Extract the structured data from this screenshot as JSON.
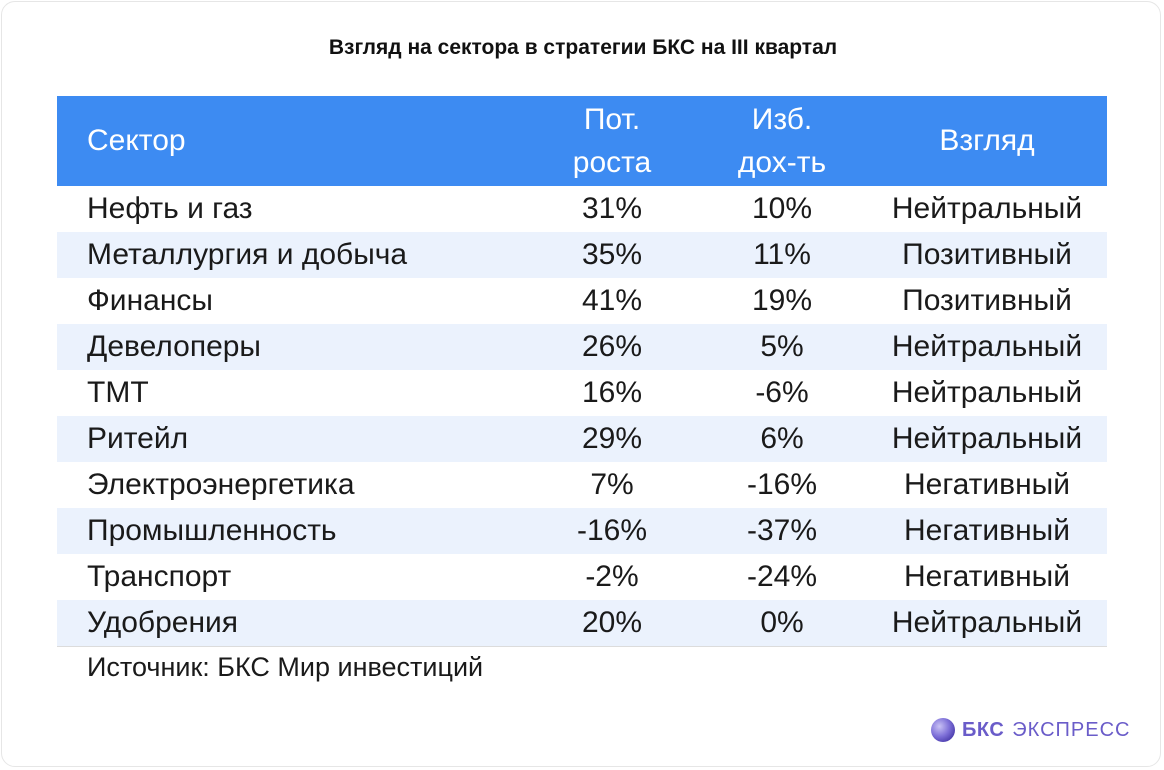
{
  "chart_data": {
    "type": "table",
    "title": "Взгляд на сектора в стратегии БКС на III квартал",
    "columns": [
      "Сектор",
      "Пот. роста",
      "Изб. дох-ть",
      "Взгляд"
    ],
    "columns_display": [
      [
        "Сектор"
      ],
      [
        "Пот.",
        "роста"
      ],
      [
        "Изб.",
        "дох-ть"
      ],
      [
        "Взгляд"
      ]
    ],
    "rows": [
      [
        "Нефть и газ",
        "31%",
        "10%",
        "Нейтральный"
      ],
      [
        "Металлургия и добыча",
        "35%",
        "11%",
        "Позитивный"
      ],
      [
        "Финансы",
        "41%",
        "19%",
        "Позитивный"
      ],
      [
        "Девелоперы",
        "26%",
        "5%",
        "Нейтральный"
      ],
      [
        "ТМТ",
        "16%",
        "-6%",
        "Нейтральный"
      ],
      [
        "Ритейл",
        "29%",
        "6%",
        "Нейтральный"
      ],
      [
        "Электроэнергетика",
        "7%",
        "-16%",
        "Негативный"
      ],
      [
        "Промышленность",
        "-16%",
        "-37%",
        "Негативный"
      ],
      [
        "Транспорт",
        "-2%",
        "-24%",
        "Негативный"
      ],
      [
        "Удобрения",
        "20%",
        "0%",
        "Нейтральный"
      ]
    ],
    "source": "Источник: БКС Мир инвестиций"
  },
  "brand": {
    "logo_bold": "БКС",
    "logo_text": "ЭКСПРЕСС"
  },
  "colors": {
    "header_bg": "#3d8bf2",
    "row_alt_bg": "#ebf2fd",
    "row_bg": "#ffffff",
    "brand": "#6a5cc9"
  }
}
